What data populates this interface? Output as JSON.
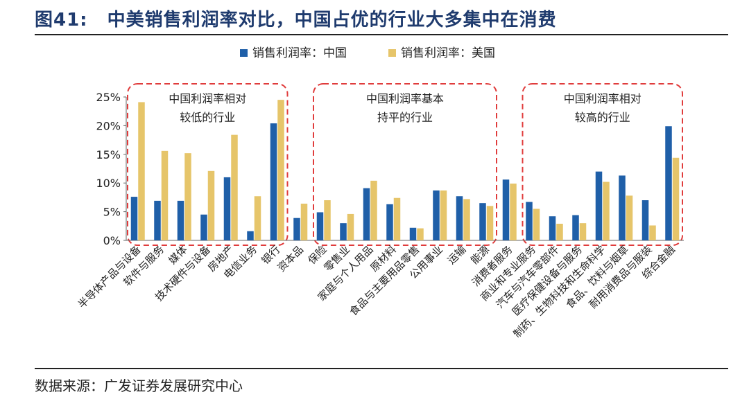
{
  "header": {
    "figure_label": "图41:",
    "title": "中美销售利润率对比，中国占优的行业大多集中在消费"
  },
  "footer": {
    "source": "数据来源：广发证券发展研究中心"
  },
  "chart_data": {
    "type": "bar",
    "title": "",
    "xlabel": "",
    "ylabel": "",
    "ylim": [
      0,
      0.25
    ],
    "yticks": [
      0,
      0.05,
      0.1,
      0.15,
      0.2,
      0.25
    ],
    "ytick_labels": [
      "0%",
      "5%",
      "10%",
      "15%",
      "20%",
      "25%"
    ],
    "legend_position": "top-center",
    "grid": false,
    "categories": [
      "半导体产品与设备",
      "软件与服务",
      "媒体",
      "技术硬件与设备",
      "房地产",
      "电信业务",
      "银行",
      "资本品",
      "保险",
      "零售业",
      "家庭与个人用品",
      "原材料",
      "食品与主要用品零售",
      "公用事业",
      "运输",
      "能源",
      "消费者服务",
      "商业和专业服务",
      "汽车与汽车零部件",
      "医疗保健设备与服务",
      "制药、生物科技和生命科学",
      "食品、饮料与烟草",
      "耐用消费品与服装",
      "综合金融"
    ],
    "series": [
      {
        "name": "销售利润率：中国",
        "color": "#1f5fa8",
        "values": [
          0.076,
          0.069,
          0.069,
          0.045,
          0.11,
          0.016,
          0.204,
          0.039,
          0.049,
          0.03,
          0.091,
          0.063,
          0.022,
          0.087,
          0.077,
          0.065,
          0.106,
          0.067,
          0.042,
          0.044,
          0.12,
          0.113,
          0.07,
          0.199
        ]
      },
      {
        "name": "销售利润率：美国",
        "color": "#e6c56a",
        "values": [
          0.241,
          0.156,
          0.152,
          0.121,
          0.184,
          0.077,
          0.245,
          0.064,
          0.07,
          0.046,
          0.104,
          0.074,
          0.021,
          0.087,
          0.072,
          0.06,
          0.099,
          0.055,
          0.029,
          0.03,
          0.102,
          0.078,
          0.026,
          0.144
        ]
      }
    ],
    "groups": [
      {
        "label_line1": "中国利润率相对",
        "label_line2": "较低的行业",
        "start": 0,
        "end": 6,
        "border_color": "#e03c3c"
      },
      {
        "label_line1": "中国利润率基本",
        "label_line2": "持平的行业",
        "start": 8,
        "end": 15,
        "border_color": "#e03c3c"
      },
      {
        "label_line1": "中国利润率相对",
        "label_line2": "较高的行业",
        "start": 17,
        "end": 23,
        "border_color": "#e03c3c"
      }
    ]
  }
}
